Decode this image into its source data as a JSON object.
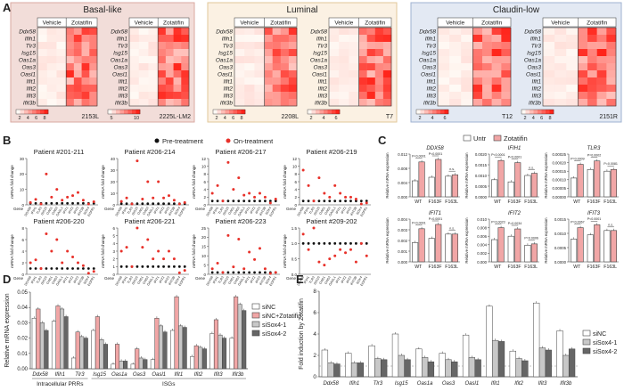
{
  "panel_labels": {
    "A": "A",
    "B": "B",
    "C": "C",
    "D": "D",
    "E": "E"
  },
  "panelA": {
    "groups": [
      {
        "title": "Basal-like",
        "bg": "#f2ddd9",
        "border": "#d9a9a1",
        "maps": [
          {
            "name": "2153L",
            "cols": [
              "Vehicle",
              "Zotatifin"
            ]
          },
          {
            "name": "2225L-LM2",
            "cols": [
              "Vehicle",
              "Zotatifin"
            ]
          }
        ]
      },
      {
        "title": "Luminal",
        "bg": "#fbf1e3",
        "border": "#e2c79a",
        "maps": [
          {
            "name": "2208L",
            "cols": [
              "Vehicle",
              "Zotatifin"
            ]
          },
          {
            "name": "T7",
            "cols": [
              "Vehicle",
              "Zotatifin"
            ]
          }
        ]
      },
      {
        "title": "Claudin-low",
        "bg": "#e3e9f3",
        "border": "#9fb2d0",
        "maps": [
          {
            "name": "T12",
            "cols": [
              "Vehicle",
              "Zotatifin"
            ]
          },
          {
            "name": "2151R",
            "cols": [
              "Vehicle",
              "Zotatifin"
            ]
          }
        ]
      }
    ],
    "genes": [
      "Ddx58",
      "Ifih1",
      "Tlr3",
      "Isg15",
      "Oas1a",
      "Oas3",
      "Oasl1",
      "Ifit1",
      "Ifit2",
      "Ifit3",
      "Ifit3b"
    ],
    "scales": [
      {
        "ticks": [
          "2",
          "4",
          "6",
          "8"
        ]
      },
      {
        "ticks": [
          "5",
          "10"
        ]
      },
      {
        "ticks": [
          "2",
          "4",
          "6",
          "8"
        ]
      },
      {
        "ticks": [
          "2",
          "4",
          "6"
        ]
      },
      {
        "ticks": [
          "2",
          "4",
          "6"
        ]
      },
      {
        "ticks": [
          "2",
          "4",
          "6",
          "8"
        ]
      }
    ]
  },
  "panelB": {
    "legend": {
      "pre": "Pre-treatment",
      "on": "On-treatment",
      "pre_color": "#111111",
      "on_color": "#e8312a"
    },
    "ylabel": "mRNA fold change",
    "gene_label": "Gene",
    "genes": [
      "DDX58",
      "IFIH1",
      "TLR3",
      "ISG15",
      "OAS1",
      "OAS3",
      "OASL1",
      "IFIT1",
      "IFIT2",
      "IFIT3",
      "IFIT3B",
      "SOX4",
      "EGFR1"
    ],
    "patients": [
      {
        "title": "Patient #201-211",
        "ticks": [
          "0",
          "10",
          "20",
          "30"
        ],
        "ymax": 30,
        "on": [
          1.5,
          3.5,
          0.5,
          20,
          5,
          10,
          3,
          5,
          6,
          8,
          3,
          0.2,
          2
        ]
      },
      {
        "title": "Patient #206-214",
        "ticks": [
          "0",
          "10",
          "20",
          "30",
          "40"
        ],
        "ymax": 40,
        "on": [
          3,
          6,
          0.5,
          38,
          5,
          20,
          6,
          20,
          6,
          8,
          4,
          0.5,
          2
        ]
      },
      {
        "title": "Patient #206-217",
        "ticks": [
          "0",
          "2",
          "4",
          "6",
          "8",
          "10",
          "12"
        ],
        "ymax": 12,
        "on": [
          3,
          5,
          1,
          11,
          4,
          7,
          2.5,
          3,
          2,
          3,
          2,
          0.5,
          1.5
        ]
      },
      {
        "title": "Patient #206-219",
        "ticks": [
          "0",
          "2",
          "4",
          "6",
          "8",
          "10",
          "12"
        ],
        "ymax": 12,
        "on": [
          9,
          5,
          1,
          7,
          3,
          2,
          5,
          3,
          2,
          2,
          1.5,
          0.2,
          0.5
        ]
      },
      {
        "title": "Patient #206-220",
        "ticks": [
          "0",
          "2",
          "4",
          "6",
          "8"
        ],
        "ymax": 8,
        "on": [
          2,
          2.5,
          1,
          7,
          4,
          6,
          2,
          4,
          3,
          2,
          1.5,
          0.2,
          0.5
        ]
      },
      {
        "title": "Patient #206-221",
        "ticks": [
          "0",
          "1",
          "2",
          "3",
          "4",
          "5",
          "6"
        ],
        "ymax": 6,
        "on": [
          3,
          3.5,
          1,
          6,
          3.5,
          4.5,
          2,
          3,
          2,
          3,
          2,
          0.2,
          0.5
        ]
      },
      {
        "title": "Patient #206-223",
        "ticks": [
          "0",
          "5",
          "10",
          "15",
          "20",
          "25"
        ],
        "ymax": 25,
        "on": [
          3,
          6,
          1,
          21,
          4,
          19,
          3,
          12,
          8,
          14,
          3,
          0.5,
          1
        ]
      },
      {
        "title": "Patient #209-202",
        "ticks": [
          "0.0",
          "0.5",
          "1.0",
          "1.5"
        ],
        "ymax": 1.5,
        "on": [
          1.3,
          0.8,
          1.5,
          0.4,
          0.3,
          0.5,
          0.6,
          0.8,
          0.7,
          0.8,
          0.4,
          1.0,
          0.6
        ]
      }
    ]
  },
  "panelC": {
    "legend": {
      "untr": "Untr",
      "zota": "Zotatifin",
      "untr_color": "#ffffff",
      "zota_color": "#f1a6a6"
    },
    "ylabel": "Relative mRNA expression",
    "groups": [
      "WT",
      "F163F",
      "F163L"
    ],
    "plots": [
      {
        "title": "DDX58",
        "ticks": [
          "0.000",
          "0.004",
          "0.008",
          "0.012"
        ],
        "ymax": 0.012,
        "untr": [
          0.0045,
          0.0055,
          0.0058
        ],
        "zota": [
          0.0098,
          0.0105,
          0.0062
        ],
        "pvals": [
          "P<0.0001",
          "P<0.0001",
          "n.s."
        ]
      },
      {
        "title": "IFIH1",
        "ticks": [
          "0.0000",
          "0.0005",
          "0.0010",
          "0.0015",
          "0.0020"
        ],
        "ymax": 0.002,
        "untr": [
          0.0008,
          0.0007,
          0.001
        ],
        "zota": [
          0.0017,
          0.0016,
          0.0011
        ],
        "pvals": [
          "P<0.0001",
          "P<0.0001",
          "n.s."
        ]
      },
      {
        "title": "TLR3",
        "ticks": [
          "0.00000",
          "0.00005",
          "0.00010",
          "0.00015",
          "0.00020",
          "0.00025"
        ],
        "ymax": 0.00025,
        "untr": [
          0.00011,
          0.00016,
          0.00015
        ],
        "zota": [
          0.00019,
          0.00021,
          0.00016
        ],
        "pvals": [
          "P=0.0009",
          "P=0.0002",
          "P=0.0081"
        ]
      },
      {
        "title": "IFIT1",
        "ticks": [
          "0.000",
          "0.001",
          "0.002",
          "0.003",
          "0.004"
        ],
        "ymax": 0.004,
        "untr": [
          0.0018,
          0.0022,
          0.0026
        ],
        "zota": [
          0.0031,
          0.0035,
          0.0026
        ],
        "pvals": [
          "P<0.0001",
          "P=0.0001",
          "n.s."
        ]
      },
      {
        "title": "IFIT2",
        "ticks": [
          "0.000",
          "0.002",
          "0.004",
          "0.006",
          "0.008",
          "0.010"
        ],
        "ymax": 0.01,
        "untr": [
          0.0052,
          0.006,
          0.0039
        ],
        "zota": [
          0.008,
          0.0077,
          0.0042
        ],
        "pvals": [
          "P=0.0023",
          "P=0.0034",
          "P=0.0006"
        ]
      },
      {
        "title": "IFIT3",
        "ticks": [
          "0.0000",
          "0.0005",
          "0.0010",
          "0.0015"
        ],
        "ymax": 0.0015,
        "untr": [
          0.0008,
          0.00095,
          0.0011
        ],
        "zota": [
          0.0012,
          0.0013,
          0.0011
        ],
        "pvals": [
          "P=0.0067",
          "P<0.0001",
          "n.s."
        ]
      }
    ]
  },
  "panelD": {
    "ylabel": "Relative mRNA expression",
    "ticks": [
      "0.00",
      "0.01",
      "0.02",
      "0.03",
      "0.04",
      "0.05"
    ],
    "ymax": 0.05,
    "genes": [
      "Ddx58",
      "Ifih1",
      "Tlr3",
      "Isg15",
      "Oas1a",
      "Oas3",
      "Oasl1",
      "Ifit1",
      "Ifit2",
      "Ifit3",
      "Ifit3b"
    ],
    "categories": [
      "Intracellular PRRs",
      "ISGs"
    ],
    "series": [
      {
        "name": "siNC",
        "color": "#ffffff",
        "values": [
          0.033,
          0.031,
          0.007,
          0.025,
          0.003,
          0.003,
          0.006,
          0.025,
          0.008,
          0.023,
          0.02
        ]
      },
      {
        "name": "siNC+Zotatifin",
        "color": "#f1a6a6",
        "values": [
          0.039,
          0.041,
          0.024,
          0.034,
          0.016,
          0.013,
          0.033,
          0.047,
          0.015,
          0.032,
          0.047
        ]
      },
      {
        "name": "siSox4-1",
        "color": "#c8c8c8",
        "values": [
          0.03,
          0.039,
          0.021,
          0.019,
          0.005,
          0.007,
          0.028,
          0.028,
          0.014,
          0.022,
          0.042
        ]
      },
      {
        "name": "siSox4-2",
        "color": "#666666",
        "values": [
          0.025,
          0.034,
          0.02,
          0.016,
          0.005,
          0.006,
          0.024,
          0.027,
          0.013,
          0.02,
          0.038
        ]
      }
    ]
  },
  "panelE": {
    "ylabel": "Fold induction by Zotatifin",
    "ticks": [
      "0",
      "2",
      "4",
      "6",
      "8"
    ],
    "ymax": 8,
    "genes": [
      "Ddx58",
      "Ifih1",
      "Tlr3",
      "Isg15",
      "Oas1a",
      "Oas3",
      "Oasl1",
      "Ifit1",
      "Ifit2",
      "Ifit3",
      "Ifit3b"
    ],
    "series": [
      {
        "name": "siNC",
        "color": "#ffffff",
        "values": [
          2.5,
          2.2,
          2.9,
          4.0,
          2.6,
          2.2,
          3.9,
          6.6,
          2.4,
          6.9,
          4.3
        ]
      },
      {
        "name": "siSox4-1",
        "color": "#c8c8c8",
        "values": [
          1.3,
          1.3,
          1.7,
          2.0,
          1.8,
          1.6,
          1.8,
          3.4,
          1.7,
          2.7,
          2.0
        ]
      },
      {
        "name": "siSox4-2",
        "color": "#666666",
        "values": [
          1.2,
          1.3,
          1.6,
          1.6,
          1.4,
          1.4,
          1.6,
          3.3,
          1.5,
          2.5,
          2.6
        ]
      }
    ]
  }
}
